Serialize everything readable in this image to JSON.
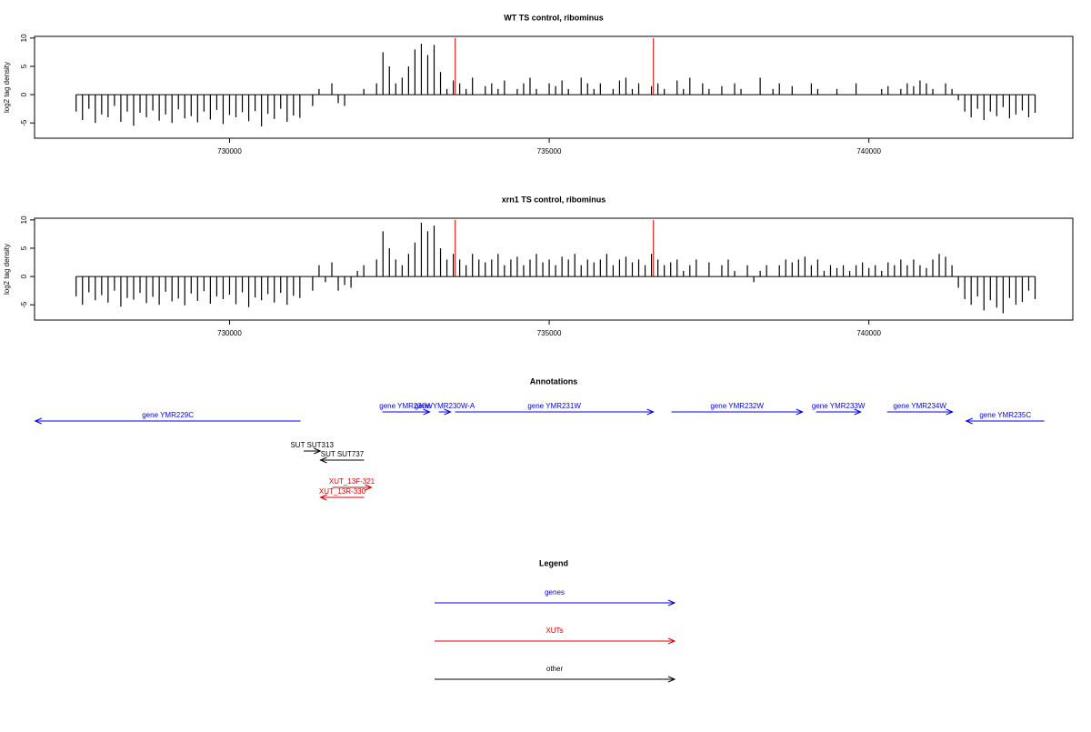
{
  "chart_data": [
    {
      "type": "bar",
      "title": "WT TS control, ribominus",
      "y_label": "log2 tag density",
      "xlim": [
        726950,
        743190
      ],
      "ylim": [
        -7.7,
        10.3
      ],
      "xticks": [
        730000,
        735000,
        740000
      ],
      "yticks": [
        -5,
        0,
        5,
        10
      ],
      "x_start": 727600,
      "x_step": 100,
      "color": "#000000",
      "markers": [
        733530,
        736630
      ],
      "marker_color": "#e00000",
      "values": [
        -3,
        -4.5,
        -2.5,
        -5,
        -3.5,
        -4,
        -2,
        -4.8,
        -3,
        -5.5,
        -3.2,
        -4,
        -2.8,
        -4.6,
        -3.5,
        -5,
        -2.6,
        -4.2,
        -3.8,
        -4.9,
        -3,
        -4.4,
        -2.7,
        -5.2,
        -3.6,
        -4,
        -3.1,
        -4.7,
        -2.9,
        -5.6,
        -3.4,
        -4.3,
        -2.5,
        -4.8,
        -3.7,
        -4.1,
        0,
        -2,
        1,
        0,
        2,
        -1.5,
        -2,
        0,
        0,
        1,
        0,
        2,
        7.5,
        5,
        2,
        3,
        5,
        8,
        9,
        7,
        8.8,
        4,
        1,
        2.5,
        2,
        1,
        3,
        0,
        1.5,
        2,
        1,
        2.5,
        0,
        1,
        2,
        3,
        1,
        0,
        2,
        1.5,
        2.5,
        1,
        0,
        3,
        2,
        1,
        2,
        0,
        1,
        2.5,
        3,
        1,
        2,
        0,
        1.5,
        2,
        1,
        0,
        2.5,
        1,
        3,
        0,
        2,
        1,
        0,
        1.5,
        0,
        2,
        1,
        0,
        0,
        3,
        0,
        1,
        2,
        0,
        1.5,
        0,
        0,
        2,
        1,
        0,
        0,
        1,
        0,
        0,
        2,
        0,
        0,
        0,
        1,
        1.5,
        0,
        1,
        2,
        1.5,
        2.5,
        2,
        1,
        0,
        2,
        1,
        -1,
        -3,
        -4,
        -2.5,
        -4.5,
        -3,
        -3.8,
        -2.2,
        -4.2,
        -3.5,
        -2.8,
        -4,
        -3.2
      ]
    },
    {
      "type": "bar",
      "title": "xrn1 TS control, ribominus",
      "y_label": "log2 tag density",
      "xlim": [
        726950,
        743190
      ],
      "ylim": [
        -7.7,
        10.3
      ],
      "xticks": [
        730000,
        735000,
        740000
      ],
      "yticks": [
        -5,
        0,
        5,
        10
      ],
      "x_start": 727600,
      "x_step": 100,
      "color": "#000000",
      "markers": [
        733530,
        736630
      ],
      "marker_color": "#e00000",
      "values": [
        -3.5,
        -5,
        -2.8,
        -4.2,
        -3.3,
        -4.6,
        -2.5,
        -5.3,
        -3.8,
        -4.1,
        -2.9,
        -4.7,
        -3.6,
        -5,
        -2.7,
        -4.4,
        -3.9,
        -5.1,
        -3,
        -4.3,
        -2.6,
        -4.8,
        -3.5,
        -4,
        -3.2,
        -4.9,
        -2.8,
        -5.4,
        -3.7,
        -4.2,
        -3.1,
        -4.6,
        -2.9,
        -5,
        -3.4,
        -3.8,
        0,
        -2.5,
        2,
        -1,
        2.5,
        -2.5,
        -1.5,
        -2,
        1,
        2,
        0,
        3,
        8,
        5,
        3,
        2,
        4,
        6,
        9.5,
        8,
        9,
        5,
        3,
        4,
        3,
        2,
        4,
        3,
        2.5,
        3,
        4,
        2,
        3,
        3.5,
        2,
        3,
        4,
        2.5,
        3,
        2,
        3.5,
        3,
        4,
        2,
        3,
        2.5,
        3,
        4,
        2,
        3,
        3.5,
        2.5,
        3,
        2,
        4,
        3,
        2,
        2.5,
        3,
        1,
        2,
        3,
        0,
        2.5,
        0,
        2,
        3,
        1,
        0,
        2,
        -1,
        1,
        2,
        0,
        2,
        3,
        2.5,
        3,
        3.5,
        2,
        3,
        1,
        2,
        1.5,
        2,
        1,
        2,
        2.5,
        1.5,
        2,
        1,
        2.5,
        2,
        3,
        2,
        3,
        2,
        1.5,
        3,
        4,
        3.5,
        2,
        -2,
        -4,
        -5,
        -3.5,
        -6,
        -4.2,
        -5.5,
        -6.5,
        -3.8,
        -5,
        -4.5,
        -2.5,
        -4
      ]
    }
  ],
  "annotations": {
    "title": "Annotations",
    "features": [
      {
        "label": "gene YMR229C",
        "start": 726960,
        "end": 731110,
        "strand": "-",
        "kind": "gene",
        "color": "#0000ee"
      },
      {
        "label": "gene YMR230W",
        "start": 732390,
        "end": 733130,
        "strand": "+",
        "kind": "gene",
        "color": "#0000ee"
      },
      {
        "label": "gene YMR230W-A",
        "start": 733272,
        "end": 733457,
        "strand": "+",
        "kind": "gene",
        "color": "#0000ee"
      },
      {
        "label": "gene YMR231W",
        "start": 733528,
        "end": 736629,
        "strand": "+",
        "kind": "gene",
        "color": "#0000ee"
      },
      {
        "label": "gene YMR232W",
        "start": 736913,
        "end": 738962,
        "strand": "+",
        "kind": "gene",
        "color": "#0000ee"
      },
      {
        "label": "gene YMR233W",
        "start": 739175,
        "end": 739872,
        "strand": "+",
        "kind": "gene",
        "color": "#0000ee"
      },
      {
        "label": "gene YMR234W",
        "start": 740284,
        "end": 741308,
        "strand": "+",
        "kind": "gene",
        "color": "#0000ee"
      },
      {
        "label": "gene YMR235C",
        "start": 741522,
        "end": 742745,
        "strand": "-",
        "kind": "gene",
        "color": "#0000ee"
      },
      {
        "label": "SUT SUT313",
        "start": 731160,
        "end": 731420,
        "strand": "+",
        "kind": "other",
        "color": "#000000"
      },
      {
        "label": "SUT SUT737",
        "start": 731422,
        "end": 732105,
        "strand": "-",
        "kind": "other",
        "color": "#000000"
      },
      {
        "label": "XUT_13F-321",
        "start": 731607,
        "end": 732219,
        "strand": "+",
        "kind": "xut",
        "color": "#e00000"
      },
      {
        "label": "XUT_13R-330",
        "start": 731422,
        "end": 732105,
        "strand": "-",
        "kind": "xut",
        "color": "#e00000"
      }
    ]
  },
  "legend": {
    "title": "Legend",
    "items": [
      {
        "name": "genes",
        "color": "#0000ee"
      },
      {
        "name": "XUTs",
        "color": "#e00000"
      },
      {
        "name": "other",
        "color": "#000000"
      }
    ]
  }
}
